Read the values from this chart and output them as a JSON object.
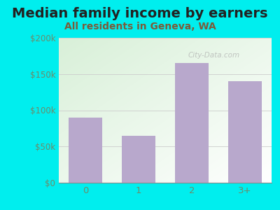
{
  "title": "Median family income by earners",
  "subtitle": "All residents in Geneva, WA",
  "categories": [
    "0",
    "1",
    "2",
    "3+"
  ],
  "values": [
    90000,
    65000,
    165000,
    140000
  ],
  "bar_color": "#b8a8cc",
  "ylim": [
    0,
    200000
  ],
  "yticks": [
    0,
    50000,
    100000,
    150000,
    200000
  ],
  "ytick_labels": [
    "$0",
    "$50k",
    "$100k",
    "$150k",
    "$200k"
  ],
  "title_fontsize": 14,
  "subtitle_fontsize": 10,
  "title_color": "#222222",
  "subtitle_color": "#7a5c3a",
  "tick_color": "#6b8c6b",
  "bg_outer": "#00eeee",
  "watermark": "City-Data.com",
  "figsize": [
    4.0,
    3.0
  ],
  "dpi": 100
}
